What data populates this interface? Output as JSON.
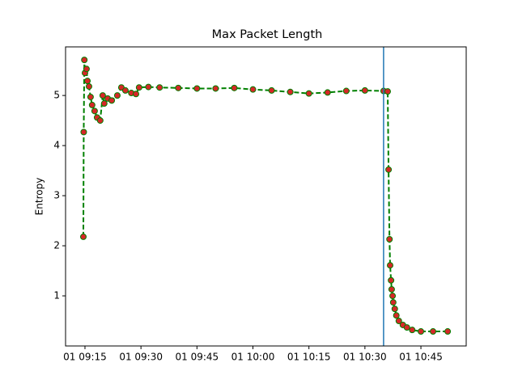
{
  "chart_data": {
    "type": "line",
    "title": "Max Packet Length",
    "y_label": "Entropy",
    "x": [
      "01 09:14:34",
      "01 09:14:40",
      "01 09:14:50",
      "01 09:15:00",
      "01 09:15:25",
      "01 09:15:40",
      "01 09:16:05",
      "01 09:16:30",
      "01 09:16:55",
      "01 09:17:35",
      "01 09:18:15",
      "01 09:19:05",
      "01 09:19:45",
      "01 09:20:10",
      "01 09:21:05",
      "01 09:22:10",
      "01 09:23:40",
      "01 09:24:45",
      "01 09:25:50",
      "01 09:27:25",
      "01 09:28:40",
      "01 09:29:30",
      "01 09:32:00",
      "01 09:35:00",
      "01 09:40:00",
      "01 09:45:00",
      "01 09:50:00",
      "01 09:55:00",
      "01 10:00:00",
      "01 10:05:00",
      "01 10:10:00",
      "01 10:15:00",
      "01 10:20:00",
      "01 10:25:00",
      "01 10:30:00",
      "01 10:35:00",
      "01 10:36:06",
      "01 10:36:20",
      "01 10:36:35",
      "01 10:36:45",
      "01 10:37:00",
      "01 10:37:10",
      "01 10:37:25",
      "01 10:37:35",
      "01 10:38:00",
      "01 10:38:25",
      "01 10:39:05",
      "01 10:40:10",
      "01 10:41:15",
      "01 10:42:40",
      "01 10:45:00",
      "01 10:48:15",
      "01 10:52:10"
    ],
    "series": [
      {
        "color": "#008000",
        "marker_color": "#d62728",
        "values": [
          2.18,
          4.27,
          5.71,
          5.45,
          5.53,
          5.29,
          5.18,
          4.97,
          4.81,
          4.69,
          4.56,
          4.5,
          5.0,
          4.84,
          4.94,
          4.9,
          5.0,
          5.16,
          5.1,
          5.05,
          5.03,
          5.16,
          5.17,
          5.16,
          5.15,
          5.14,
          5.14,
          5.15,
          5.12,
          5.1,
          5.07,
          5.04,
          5.06,
          5.09,
          5.1,
          5.09,
          5.08,
          3.52,
          2.13,
          1.61,
          1.31,
          1.13,
          1.0,
          0.87,
          0.74,
          0.61,
          0.5,
          0.42,
          0.37,
          0.32,
          0.29,
          0.29,
          0.29
        ]
      }
    ],
    "vline": {
      "x": "01 10:35:00",
      "color": "#1f77b4"
    },
    "xlim": [
      "01 09:09:48",
      "01 10:57:08"
    ],
    "xticks": [
      "01 09:15",
      "01 09:30",
      "01 09:45",
      "01 10:00",
      "01 10:15",
      "01 10:30",
      "01 10:45"
    ],
    "ylim": [
      0,
      5.97
    ],
    "yticks": [
      1,
      2,
      3,
      4,
      5
    ]
  }
}
